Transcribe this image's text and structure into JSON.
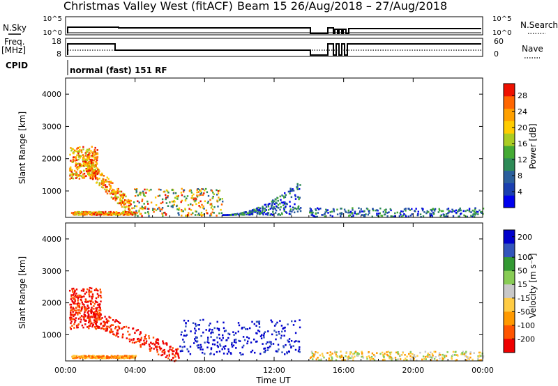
{
  "header": {
    "title": "Christmas Valley West (fitACF)",
    "subtitle": "Beam 15  26/Aug/2018 – 27/Aug/2018"
  },
  "status_panels": {
    "nsky_label": "N.Sky",
    "nsky_ticks": [
      "10^5",
      "10^0"
    ],
    "nsearch_label": "N.Search",
    "nsearch_ticks": [
      "10^5",
      "10^0"
    ],
    "freq_label": "Freq.",
    "freq_unit": "[MHz]",
    "freq_ticks": [
      "18",
      "8"
    ],
    "nave_label": "Nave",
    "nave_ticks": [
      "60",
      "0"
    ],
    "cpid_label": "CPID",
    "cpid_value": "normal (fast) 151 RF"
  },
  "colors": {
    "power": [
      "#0000ee",
      "#1a3fb0",
      "#2b5f9c",
      "#2e8b57",
      "#44aa33",
      "#aacc22",
      "#ffcc00",
      "#ffa000",
      "#ff6600",
      "#ee1100"
    ],
    "velocity": {
      "neg_far": "#ee0000",
      "neg_mid": "#ff5500",
      "neg_near": "#ff9900",
      "neg_small": "#ffcc44",
      "ground": "#c8c8c8",
      "pos_small": "#88cc55",
      "pos_near": "#339933",
      "pos_mid": "#3355bb",
      "pos_far": "#0000cc"
    }
  },
  "chart_data": [
    {
      "type": "heatmap",
      "title": "",
      "ylabel": "Slant Range [km]",
      "xlabel": "",
      "ylim": [
        180,
        4500
      ],
      "xlim": [
        "00:00",
        "24:00"
      ],
      "yticks": [
        "1000",
        "2000",
        "3000",
        "4000"
      ],
      "colorbar": {
        "label": "Power [dB]",
        "ticks": [
          "4",
          "8",
          "12",
          "16",
          "20",
          "24",
          "28"
        ],
        "range": [
          0,
          31
        ]
      },
      "regions": [
        {
          "t": [
            0.2,
            1.8
          ],
          "r": [
            1400,
            2400
          ],
          "value": "high"
        },
        {
          "t": [
            1.0,
            3.8
          ],
          "r": [
            450,
            1900
          ],
          "value": "high"
        },
        {
          "t": [
            3.8,
            9.0
          ],
          "r": [
            250,
            1100
          ],
          "value": "mixed"
        },
        {
          "t": [
            9.0,
            13.5
          ],
          "r": [
            280,
            1400
          ],
          "value": "low"
        },
        {
          "t": [
            0.3,
            4.0
          ],
          "r": [
            280,
            380
          ],
          "value": "high"
        },
        {
          "t": [
            14.0,
            24.0
          ],
          "r": [
            220,
            500
          ],
          "value": "low"
        }
      ]
    },
    {
      "type": "heatmap",
      "title": "",
      "ylabel": "Slant Range [km]",
      "xlabel": "Time UT",
      "ylim": [
        180,
        4500
      ],
      "xlim": [
        "00:00",
        "24:00"
      ],
      "xticks": [
        "00:00",
        "04:00",
        "08:00",
        "12:00",
        "16:00",
        "20:00",
        "00:00"
      ],
      "yticks": [
        "1000",
        "2000",
        "3000",
        "4000"
      ],
      "colorbar": {
        "label": "Velocity [m s⁻¹]",
        "ticks": [
          "200",
          "100",
          "50",
          "15",
          "-15",
          "-50",
          "-100",
          "-200"
        ]
      },
      "regions": [
        {
          "t": [
            0.2,
            2.0
          ],
          "r": [
            1200,
            2500
          ],
          "value": "negative"
        },
        {
          "t": [
            1.0,
            6.5
          ],
          "r": [
            350,
            1700
          ],
          "value": "negative"
        },
        {
          "t": [
            6.5,
            13.5
          ],
          "r": [
            400,
            1500
          ],
          "value": "positive"
        },
        {
          "t": [
            0.3,
            4.0
          ],
          "r": [
            290,
            370
          ],
          "value": "negative-small"
        },
        {
          "t": [
            14.0,
            24.0
          ],
          "r": [
            220,
            500
          ],
          "value": "small"
        }
      ]
    }
  ]
}
